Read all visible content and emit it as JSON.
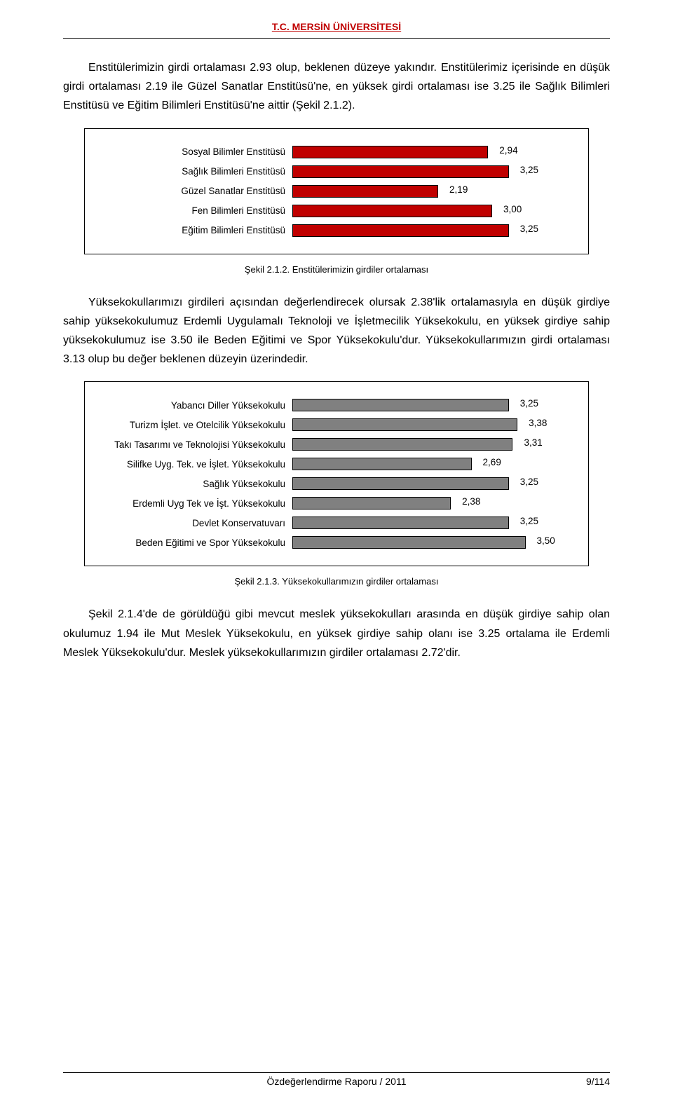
{
  "header": {
    "title": "T.C. MERSİN ÜNİVERSİTESİ"
  },
  "para1": "Enstitülerimizin girdi ortalaması 2.93 olup, beklenen düzeye yakındır. Enstitülerimiz içerisinde en düşük girdi ortalaması 2.19 ile Güzel Sanatlar Enstitüsü'ne, en yüksek girdi ortalaması ise 3.25 ile Sağlık Bilimleri Enstitüsü ve Eğitim Bilimleri Enstitüsü'ne aittir (Şekil 2.1.2).",
  "chart1": {
    "type": "bar-horizontal",
    "xmax": 4.0,
    "bar_fill": "#c00000",
    "bar_border": "#000000",
    "text_color": "#000000",
    "label_fontsize": 13.5,
    "background_color": "#ffffff",
    "categories": [
      "Sosyal Bilimler Enstitüsü",
      "Sağlık Bilimleri Enstitüsü",
      "Güzel Sanatlar Enstitüsü",
      "Fen Bilimleri Enstitüsü",
      "Eğitim Bilimleri Enstitüsü"
    ],
    "values": [
      2.94,
      3.25,
      2.19,
      3.0,
      3.25
    ],
    "value_labels": [
      "2,94",
      "3,25",
      "2,19",
      "3,00",
      "3,25"
    ]
  },
  "caption1": "Şekil 2.1.2. Enstitülerimizin girdiler ortalaması",
  "para2": "Yüksekokullarımızı girdileri açısından değerlendirecek olursak 2.38'lik ortalamasıyla en düşük girdiye sahip yüksekokulumuz Erdemli Uygulamalı Teknoloji ve İşletmecilik Yüksekokulu, en yüksek girdiye sahip yüksekokulumuz ise 3.50 ile Beden Eğitimi ve Spor Yüksekokulu'dur. Yüksekokullarımızın girdi ortalaması 3.13 olup bu değer beklenen düzeyin üzerindedir.",
  "chart2": {
    "type": "bar-horizontal",
    "xmax": 4.0,
    "bar_fill": "#808080",
    "bar_border": "#000000",
    "text_color": "#000000",
    "label_fontsize": 13.5,
    "background_color": "#ffffff",
    "categories": [
      "Yabancı Diller Yüksekokulu",
      "Turizm İşlet. ve Otelcilik Yüksekokulu",
      "Takı Tasarımı ve Teknolojisi Yüksekokulu",
      "Silifke Uyg. Tek. ve İşlet. Yüksekokulu",
      "Sağlık Yüksekokulu",
      "Erdemli Uyg Tek ve İşt. Yüksekokulu",
      "Devlet Konservatuvarı",
      "Beden Eğitimi ve Spor Yüksekokulu"
    ],
    "values": [
      3.25,
      3.38,
      3.31,
      2.69,
      3.25,
      2.38,
      3.25,
      3.5
    ],
    "value_labels": [
      "3,25",
      "3,38",
      "3,31",
      "2,69",
      "3,25",
      "2,38",
      "3,25",
      "3,50"
    ]
  },
  "caption2": "Şekil 2.1.3. Yüksekokullarımızın girdiler ortalaması",
  "para3": "Şekil 2.1.4'de de görüldüğü gibi mevcut meslek yüksekokulları arasında en düşük girdiye sahip olan okulumuz 1.94 ile Mut Meslek Yüksekokulu, en yüksek girdiye sahip olanı ise 3.25 ortalama ile Erdemli Meslek Yüksekokulu'dur. Meslek yüksekokullarımızın girdiler ortalaması 2.72'dir.",
  "footer": {
    "center": "Özdeğerlendirme Raporu / 2011",
    "right": "9/114"
  }
}
